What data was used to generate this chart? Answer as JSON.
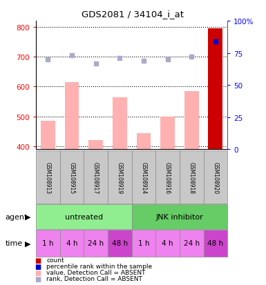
{
  "title": "GDS2081 / 34104_i_at",
  "samples": [
    "GSM108913",
    "GSM108915",
    "GSM108917",
    "GSM108919",
    "GSM108914",
    "GSM108916",
    "GSM108918",
    "GSM108920"
  ],
  "bar_values": [
    485,
    615,
    420,
    565,
    445,
    500,
    585,
    795
  ],
  "bar_absent": [
    true,
    true,
    true,
    true,
    true,
    true,
    true,
    false
  ],
  "rank_values": [
    70,
    73,
    67,
    71,
    69,
    70,
    72,
    84
  ],
  "rank_absent": [
    true,
    true,
    true,
    true,
    true,
    true,
    true,
    false
  ],
  "ylim_left": [
    390,
    820
  ],
  "ylim_right": [
    0,
    100
  ],
  "yticks_left": [
    400,
    500,
    600,
    700,
    800
  ],
  "yticks_right": [
    0,
    25,
    50,
    75,
    100
  ],
  "time_labels": [
    "1 h",
    "4 h",
    "24 h",
    "48 h",
    "1 h",
    "4 h",
    "24 h",
    "48 h"
  ],
  "time_color": "#EE82EE",
  "time_color_dark": "#CC44CC",
  "bar_color_absent": "#FFB0B0",
  "bar_color_present": "#CC0000",
  "rank_color_absent": "#AAAACC",
  "rank_color_present": "#0000CC",
  "agent_color": "#90EE90",
  "sample_box_color": "#C8C8C8",
  "legend_items": [
    {
      "color": "#CC0000",
      "label": "count"
    },
    {
      "color": "#0000CC",
      "label": "percentile rank within the sample"
    },
    {
      "color": "#FFB0B0",
      "label": "value, Detection Call = ABSENT"
    },
    {
      "color": "#AAAACC",
      "label": "rank, Detection Call = ABSENT"
    }
  ]
}
